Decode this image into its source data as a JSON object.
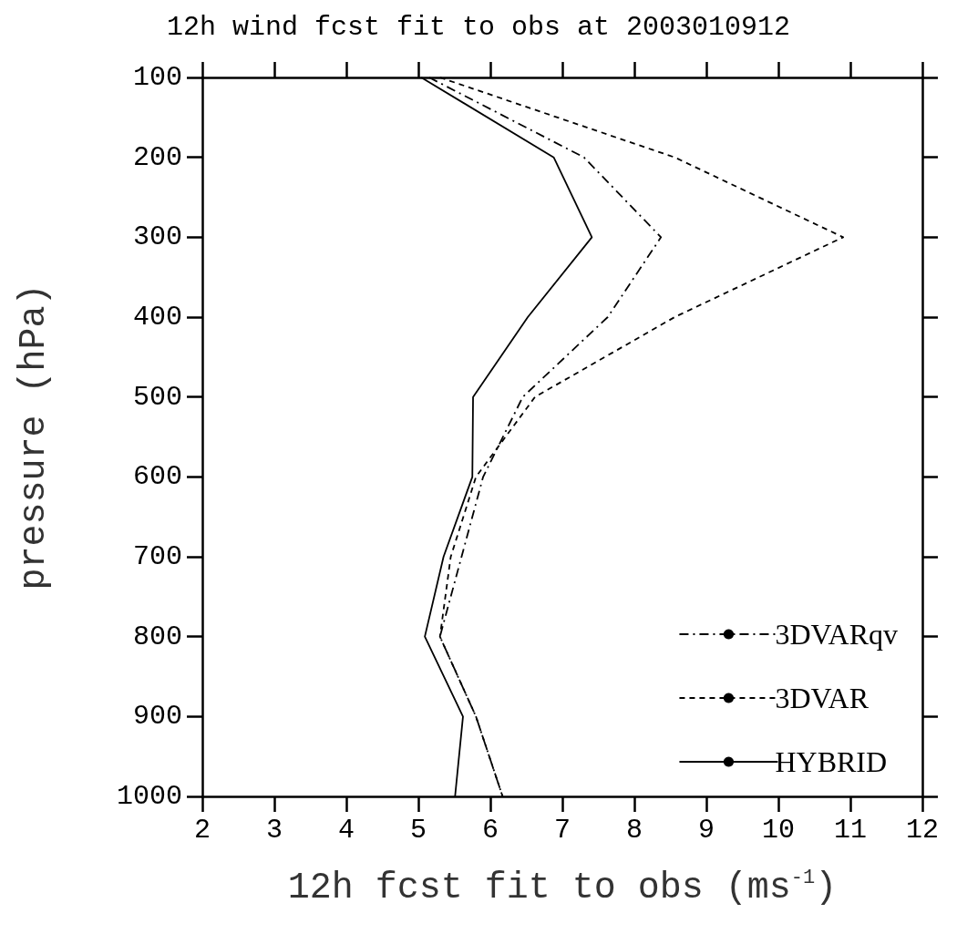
{
  "chart_data": {
    "type": "line",
    "title": "12h wind fcst fit to obs at 2003010912",
    "xlabel": "12h fcst fit to obs (ms$^{-1}$)",
    "ylabel": "pressure (hPa)",
    "xlim": [
      2,
      12
    ],
    "xticks": [
      2,
      3,
      4,
      5,
      6,
      7,
      8,
      9,
      10,
      11,
      12
    ],
    "ylim": [
      1000,
      100
    ],
    "yticks": [
      100,
      200,
      300,
      400,
      500,
      600,
      700,
      800,
      900,
      1000
    ],
    "grid": false,
    "legend": "bottom right",
    "marker": "none",
    "series": [
      {
        "name": "3DVARqv",
        "color": "#000000",
        "line_style": "dashdot",
        "x": [
          5.15,
          7.3,
          8.37,
          7.63,
          6.45,
          5.9,
          5.6,
          5.3,
          5.8,
          6.17
        ],
        "values": [
          100,
          200,
          300,
          400,
          500,
          600,
          700,
          800,
          900,
          1000
        ]
      },
      {
        "name": "3DVAR",
        "color": "#000000",
        "line_style": "dashed",
        "x": [
          5.3,
          8.56,
          10.9,
          8.56,
          6.62,
          5.8,
          5.45,
          5.3,
          5.8,
          6.17
        ],
        "values": [
          100,
          200,
          300,
          400,
          500,
          600,
          700,
          800,
          900,
          1000
        ]
      },
      {
        "name": "HYBRID",
        "color": "#000000",
        "line_style": "solid",
        "x": [
          5.04,
          6.88,
          7.41,
          6.52,
          5.76,
          5.75,
          5.35,
          5.09,
          5.62,
          5.51
        ],
        "values": [
          100,
          200,
          300,
          400,
          500,
          600,
          700,
          800,
          900,
          1000
        ]
      }
    ]
  }
}
